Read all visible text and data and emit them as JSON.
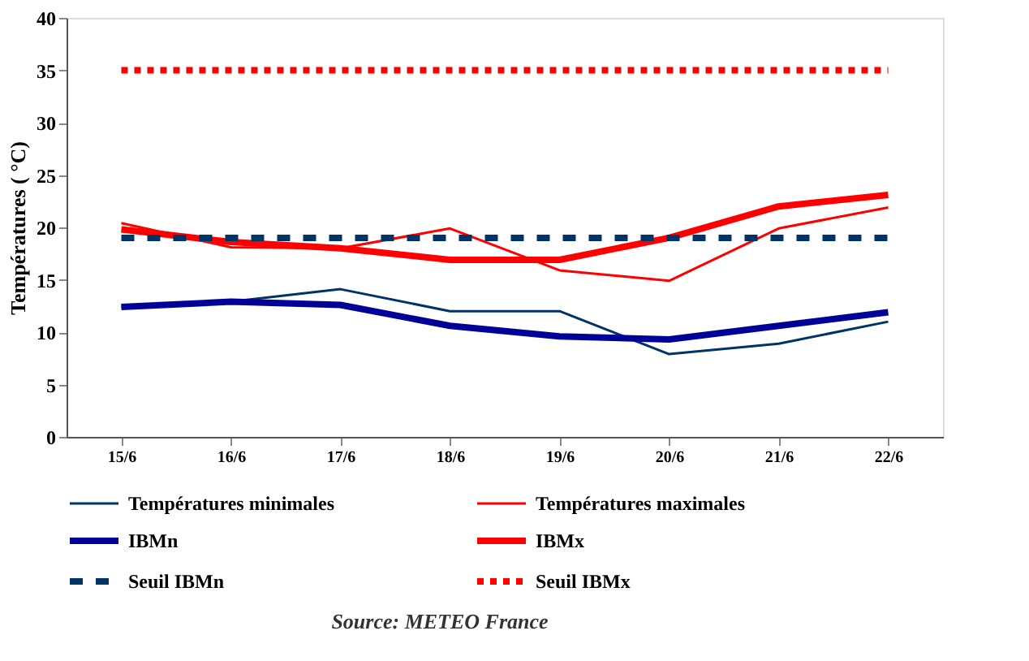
{
  "chart_data": {
    "type": "line",
    "ylabel": "Températures  ( °C)",
    "categories": [
      "15/6",
      "16/6",
      "17/6",
      "18/6",
      "19/6",
      "20/6",
      "21/6",
      "22/6"
    ],
    "ylim": [
      0,
      40
    ],
    "yticks": [
      0,
      5,
      10,
      15,
      20,
      25,
      30,
      35,
      40
    ],
    "grid": false,
    "legend": "bottom",
    "marker": "none",
    "series": [
      {
        "name": "Températures minimales",
        "color": "#003366",
        "line_style": "solid",
        "values": [
          12.4,
          12.9,
          14.1,
          12,
          12,
          7.9,
          8.9,
          11
        ]
      },
      {
        "name": "Températures maximales",
        "color": "#ff0000",
        "line_style": "solid",
        "values": [
          20.4,
          18.1,
          18,
          19.9,
          15.9,
          14.9,
          19.9,
          21.9
        ]
      },
      {
        "name": "IBMn",
        "color": "#000099",
        "line_style": "solid",
        "values": [
          12.4,
          12.9,
          12.6,
          10.6,
          9.6,
          9.3,
          10.6,
          11.9
        ]
      },
      {
        "name": "IBMx",
        "color": "#ff0000",
        "line_style": "solid",
        "values": [
          19.8,
          18.6,
          18,
          16.9,
          16.9,
          19,
          22,
          23.1
        ]
      },
      {
        "name": "Seuil IBMn",
        "color": "#003366",
        "line_style": "dashed",
        "values": [
          19,
          19,
          19,
          19,
          19,
          19,
          19,
          19
        ]
      },
      {
        "name": "Seuil IBMx",
        "color": "#ff0000",
        "line_style": "dotted",
        "values": [
          35,
          35,
          35,
          35,
          35,
          35,
          35,
          35
        ]
      }
    ],
    "annotations": [
      "Source: METEO France"
    ]
  }
}
